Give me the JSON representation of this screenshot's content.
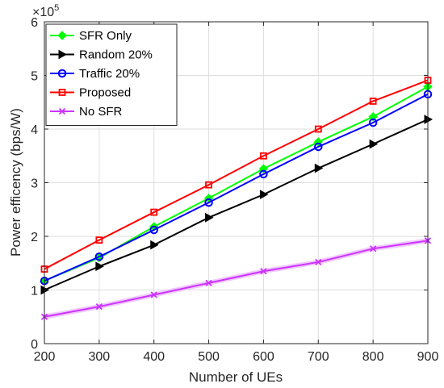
{
  "chart_data": {
    "type": "line",
    "title": "",
    "xlabel": "Number of UEs",
    "ylabel": "Power efficency (bps/W)",
    "y_multiplier_label": "×10",
    "y_multiplier_exp": "5",
    "xlim": [
      200,
      900
    ],
    "ylim": [
      0,
      6
    ],
    "x": [
      200,
      300,
      400,
      500,
      600,
      700,
      800,
      900
    ],
    "x_ticks": [
      "200",
      "300",
      "400",
      "500",
      "600",
      "700",
      "800",
      "900"
    ],
    "y_ticks": [
      "0",
      "1",
      "2",
      "3",
      "4",
      "5",
      "6"
    ],
    "grid": true,
    "legend_position": "top-left",
    "series": [
      {
        "name": "SFR Only",
        "color": "#00ff00",
        "marker": "diamond",
        "values": [
          1.17,
          1.6,
          2.18,
          2.71,
          3.26,
          3.76,
          4.23,
          4.79
        ]
      },
      {
        "name": "Random 20%",
        "color": "#000000",
        "marker": "triangle-right",
        "values": [
          1.0,
          1.44,
          1.84,
          2.35,
          2.78,
          3.27,
          3.72,
          4.18
        ]
      },
      {
        "name": "Traffic 20%",
        "color": "#0000ff",
        "marker": "circle",
        "values": [
          1.17,
          1.62,
          2.12,
          2.63,
          3.16,
          3.67,
          4.12,
          4.65
        ]
      },
      {
        "name": "Proposed",
        "color": "#ff0000",
        "marker": "square",
        "values": [
          1.39,
          1.93,
          2.45,
          2.96,
          3.5,
          4.0,
          4.52,
          4.91
        ]
      },
      {
        "name": "No SFR",
        "color": "#cc33ff",
        "marker": "x",
        "values": [
          0.5,
          0.69,
          0.91,
          1.13,
          1.35,
          1.52,
          1.77,
          1.92
        ]
      }
    ]
  }
}
